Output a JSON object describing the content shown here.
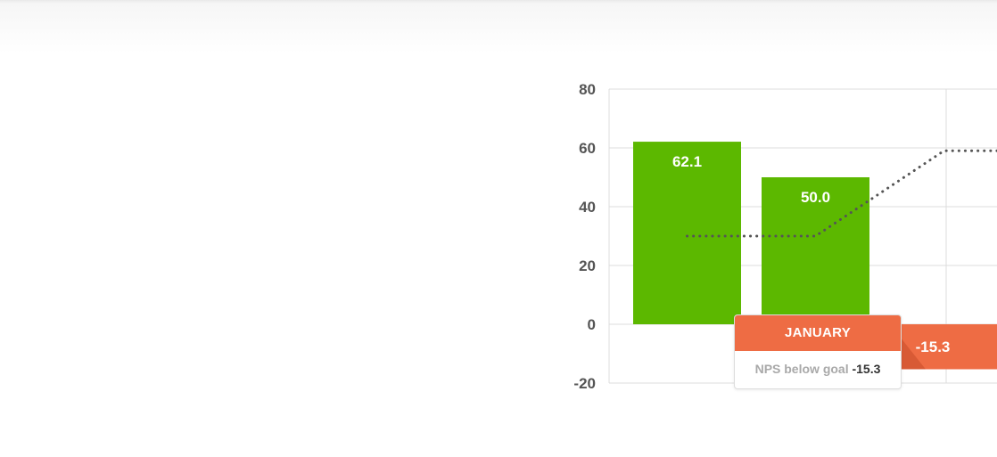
{
  "chart_data": {
    "type": "bar",
    "ylim": [
      -20,
      80
    ],
    "yticks": [
      80,
      60,
      40,
      20,
      0,
      -20
    ],
    "bars": [
      {
        "value": 62.1,
        "label": "62.1",
        "color": "#5cb800"
      },
      {
        "value": 50.0,
        "label": "50.0",
        "color": "#5cb800"
      },
      {
        "value": -15.3,
        "label": "-15.3",
        "color": "#ee6c44"
      }
    ],
    "goal_line": [
      {
        "bar": 0,
        "value": 30
      },
      {
        "bar": 1,
        "value": 30
      },
      {
        "bar": 2,
        "value": 59
      },
      {
        "bar": 3,
        "value": 59
      }
    ],
    "grid": true,
    "colors": {
      "positive": "#5cb800",
      "negative": "#ee6c44",
      "negative_dark": "#d85a35",
      "goal": "#555555"
    }
  },
  "tooltip": {
    "month": "JANUARY",
    "label": "NPS below goal",
    "value": "-15.3",
    "color": "#ee6c44"
  }
}
